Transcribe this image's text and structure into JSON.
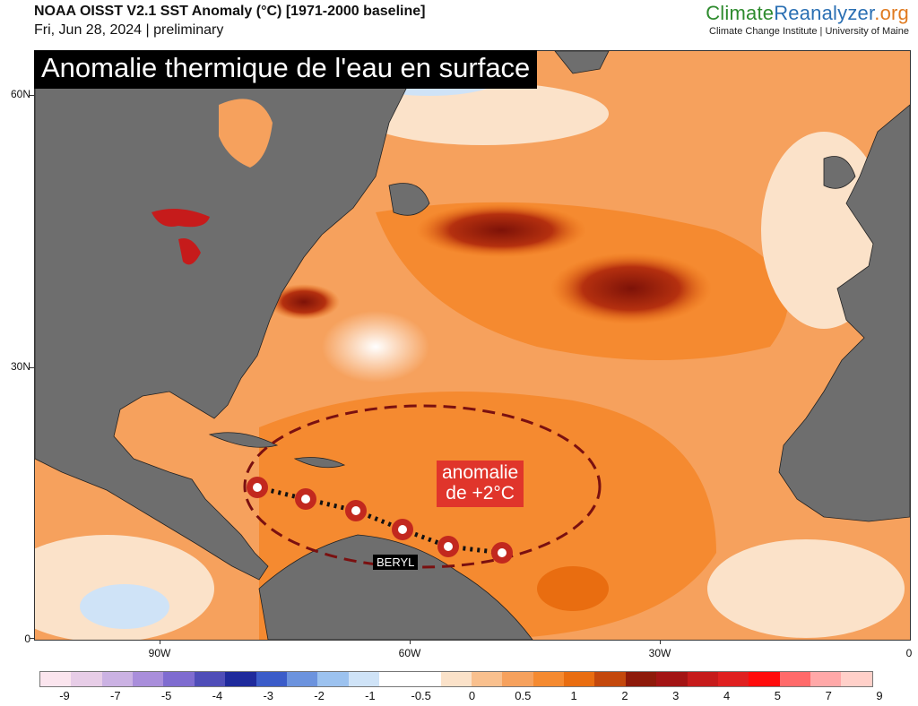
{
  "header": {
    "title": "NOAA OISST V2.1 SST Anomaly (°C) [1971-2000 baseline]",
    "date": "Fri, Jun 28, 2024 | preliminary"
  },
  "brand": {
    "part1": "Climate",
    "part2": "Reanalyzer",
    "part3": ".org",
    "subtitle": "Climate Change Institute | University of Maine",
    "colors": {
      "part1": "#2e8b2e",
      "part2": "#2a6fb3",
      "part3": "#e07a1f"
    }
  },
  "map": {
    "overlay_title": "Anomalie thermique de l'eau en surface",
    "annotation_line1": "anomalie",
    "annotation_line2": "de +2°C",
    "storm_label": "BERYL",
    "lat_labels": [
      "60N",
      "30N",
      "0"
    ],
    "lon_labels": [
      "90W",
      "60W",
      "30W",
      "0"
    ],
    "colors": {
      "land": "#6e6e6e",
      "ocean_warm": "#f58a30",
      "ocean_hot": "#b51d0e",
      "ellipse": "#7a1010",
      "storm": "#c2281e"
    }
  },
  "legend": {
    "labels": [
      "-9",
      "-7",
      "-5",
      "-4",
      "-3",
      "-2",
      "-1",
      "-0.5",
      "0",
      "0.5",
      "1",
      "2",
      "3",
      "4",
      "5",
      "7",
      "9"
    ],
    "colors": [
      "#fbe5ee",
      "#e7cde7",
      "#cbb2e3",
      "#a98edb",
      "#7f6cd0",
      "#4f4db8",
      "#1f2a9c",
      "#3b5cc9",
      "#6c93de",
      "#9cc2ef",
      "#cfe3f7",
      "#ffffff",
      "#ffffff",
      "#fbe2c9",
      "#f9c08e",
      "#f6a15d",
      "#f58a30",
      "#e96d10",
      "#c4480c",
      "#8e1a0a",
      "#a31414",
      "#c61b1b",
      "#e02020",
      "#ff0b0b",
      "#ff6a6a",
      "#ffa8a8",
      "#ffd0c9"
    ]
  }
}
